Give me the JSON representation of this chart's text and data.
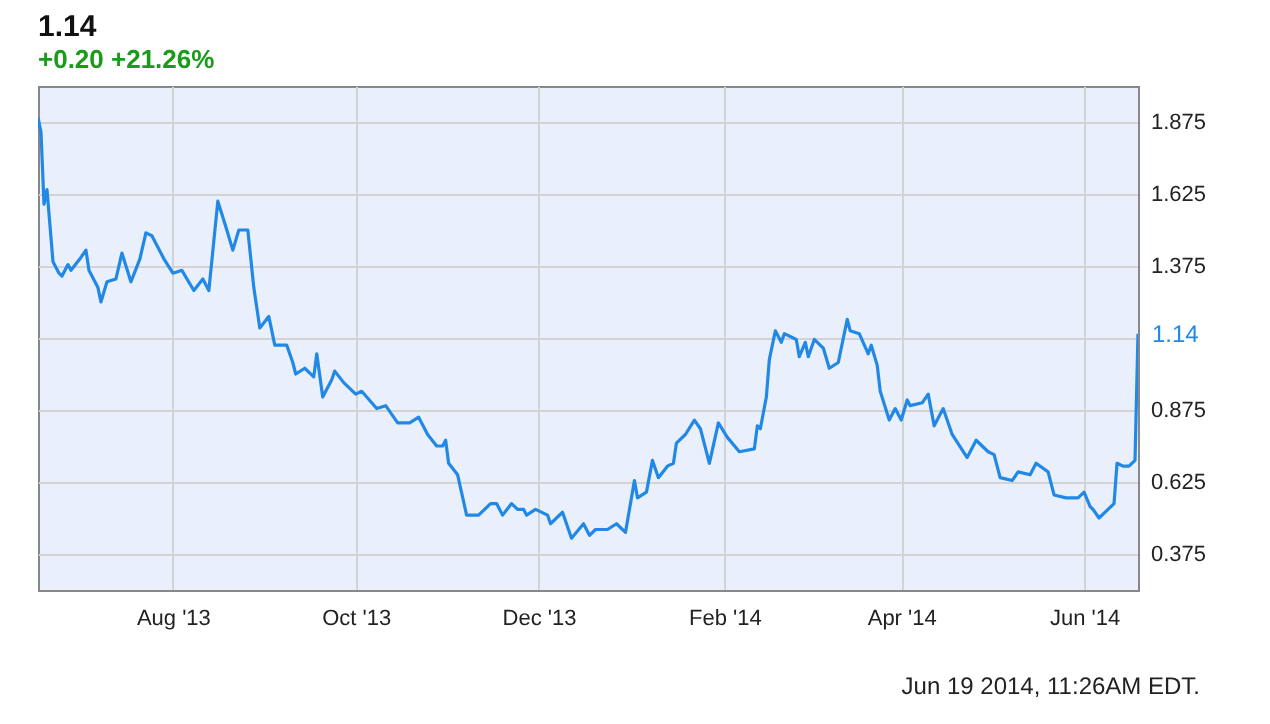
{
  "chart_data": {
    "type": "line",
    "title": "1.14",
    "subtitle": "+0.20 +21.26%",
    "x": [
      "2013-06-17",
      "2013-06-18",
      "2013-06-19",
      "2013-06-20",
      "2013-06-22",
      "2013-06-24",
      "2013-06-25",
      "2013-06-27",
      "2013-06-28",
      "2013-07-01",
      "2013-07-03",
      "2013-07-04",
      "2013-07-07",
      "2013-07-08",
      "2013-07-10",
      "2013-07-13",
      "2013-07-15",
      "2013-07-18",
      "2013-07-21",
      "2013-07-23",
      "2013-07-25",
      "2013-07-29",
      "2013-08-01",
      "2013-08-04",
      "2013-08-08",
      "2013-08-11",
      "2013-08-13",
      "2013-08-16",
      "2013-08-19",
      "2013-08-21",
      "2013-08-23",
      "2013-08-26",
      "2013-08-28",
      "2013-08-30",
      "2013-09-02",
      "2013-09-04",
      "2013-09-08",
      "2013-09-10",
      "2013-09-11",
      "2013-09-14",
      "2013-09-17",
      "2013-09-18",
      "2013-09-20",
      "2013-09-23",
      "2013-09-24",
      "2013-09-27",
      "2013-10-01",
      "2013-10-03",
      "2013-10-08",
      "2013-10-11",
      "2013-10-15",
      "2013-10-19",
      "2013-10-22",
      "2013-10-25",
      "2013-10-28",
      "2013-10-30",
      "2013-10-31",
      "2013-11-01",
      "2013-11-04",
      "2013-11-07",
      "2013-11-11",
      "2013-11-15",
      "2013-11-17",
      "2013-11-19",
      "2013-11-22",
      "2013-11-24",
      "2013-11-26",
      "2013-11-27",
      "2013-11-30",
      "2013-12-04",
      "2013-12-05",
      "2013-12-09",
      "2013-12-12",
      "2013-12-16",
      "2013-12-18",
      "2013-12-20",
      "2013-12-24",
      "2013-12-27",
      "2013-12-30",
      "2014-01-02",
      "2014-01-03",
      "2014-01-06",
      "2014-01-08",
      "2014-01-10",
      "2014-01-13",
      "2014-01-15",
      "2014-01-16",
      "2014-01-19",
      "2014-01-22",
      "2014-01-24",
      "2014-01-27",
      "2014-01-30",
      "2014-02-02",
      "2014-02-06",
      "2014-02-11",
      "2014-02-12",
      "2014-02-13",
      "2014-02-15",
      "2014-02-16",
      "2014-02-18",
      "2014-02-20",
      "2014-02-21",
      "2014-02-25",
      "2014-02-26",
      "2014-02-28",
      "2014-03-01",
      "2014-03-03",
      "2014-03-06",
      "2014-03-08",
      "2014-03-11",
      "2014-03-14",
      "2014-03-15",
      "2014-03-18",
      "2014-03-21",
      "2014-03-22",
      "2014-03-24",
      "2014-03-25",
      "2014-03-28",
      "2014-03-30",
      "2014-04-01",
      "2014-04-03",
      "2014-04-04",
      "2014-04-08",
      "2014-04-10",
      "2014-04-12",
      "2014-04-15",
      "2014-04-18",
      "2014-04-23",
      "2014-04-26",
      "2014-04-30",
      "2014-05-02",
      "2014-05-04",
      "2014-05-08",
      "2014-05-10",
      "2014-05-14",
      "2014-05-16",
      "2014-05-20",
      "2014-05-22",
      "2014-05-26",
      "2014-05-30",
      "2014-06-01",
      "2014-06-03",
      "2014-06-04",
      "2014-06-06",
      "2014-06-09",
      "2014-06-11",
      "2014-06-12",
      "2014-06-14",
      "2014-06-16",
      "2014-06-18",
      "2014-06-19"
    ],
    "series": [
      {
        "color": "#2188e6",
        "values": [
          1.89,
          1.84,
          1.59,
          1.64,
          1.39,
          1.35,
          1.34,
          1.38,
          1.36,
          1.4,
          1.43,
          1.36,
          1.3,
          1.25,
          1.32,
          1.33,
          1.42,
          1.32,
          1.4,
          1.49,
          1.48,
          1.4,
          1.35,
          1.36,
          1.29,
          1.33,
          1.29,
          1.6,
          1.5,
          1.43,
          1.5,
          1.5,
          1.3,
          1.16,
          1.2,
          1.1,
          1.1,
          1.04,
          1.0,
          1.02,
          0.99,
          1.07,
          0.92,
          0.98,
          1.01,
          0.97,
          0.93,
          0.94,
          0.88,
          0.89,
          0.83,
          0.83,
          0.85,
          0.79,
          0.75,
          0.75,
          0.77,
          0.69,
          0.65,
          0.51,
          0.51,
          0.55,
          0.55,
          0.51,
          0.55,
          0.53,
          0.53,
          0.51,
          0.53,
          0.51,
          0.48,
          0.52,
          0.43,
          0.48,
          0.44,
          0.46,
          0.46,
          0.48,
          0.45,
          0.63,
          0.57,
          0.59,
          0.7,
          0.64,
          0.68,
          0.69,
          0.76,
          0.79,
          0.84,
          0.81,
          0.69,
          0.83,
          0.78,
          0.73,
          0.74,
          0.82,
          0.81,
          0.92,
          1.05,
          1.15,
          1.11,
          1.14,
          1.12,
          1.06,
          1.11,
          1.06,
          1.12,
          1.09,
          1.02,
          1.04,
          1.19,
          1.15,
          1.14,
          1.07,
          1.1,
          1.03,
          0.94,
          0.84,
          0.88,
          0.84,
          0.91,
          0.89,
          0.9,
          0.93,
          0.82,
          0.88,
          0.79,
          0.71,
          0.77,
          0.73,
          0.72,
          0.64,
          0.63,
          0.66,
          0.65,
          0.69,
          0.66,
          0.58,
          0.57,
          0.57,
          0.59,
          0.54,
          0.53,
          0.5,
          0.53,
          0.55,
          0.69,
          0.68,
          0.68,
          0.7,
          1.14
        ]
      }
    ],
    "xlim": [
      "2013-06-17",
      "2014-06-19"
    ],
    "xticks": [
      {
        "value": "2013-08-01",
        "label": "Aug '13"
      },
      {
        "value": "2013-10-01",
        "label": "Oct '13"
      },
      {
        "value": "2013-12-01",
        "label": "Dec '13"
      },
      {
        "value": "2014-02-01",
        "label": "Feb '14"
      },
      {
        "value": "2014-04-01",
        "label": "Apr '14"
      },
      {
        "value": "2014-06-01",
        "label": "Jun '14"
      }
    ],
    "ylim": [
      0.25,
      2.0
    ],
    "yticks": [
      0.375,
      0.625,
      0.875,
      {
        "value": 1.125,
        "label": null
      },
      1.375,
      1.625,
      1.875
    ],
    "grid": true,
    "annotations": [
      {
        "text": "1.14",
        "x": "2014-06-19",
        "y": 1.14
      },
      "Jun 19 2014, 11:26AM EDT."
    ]
  }
}
